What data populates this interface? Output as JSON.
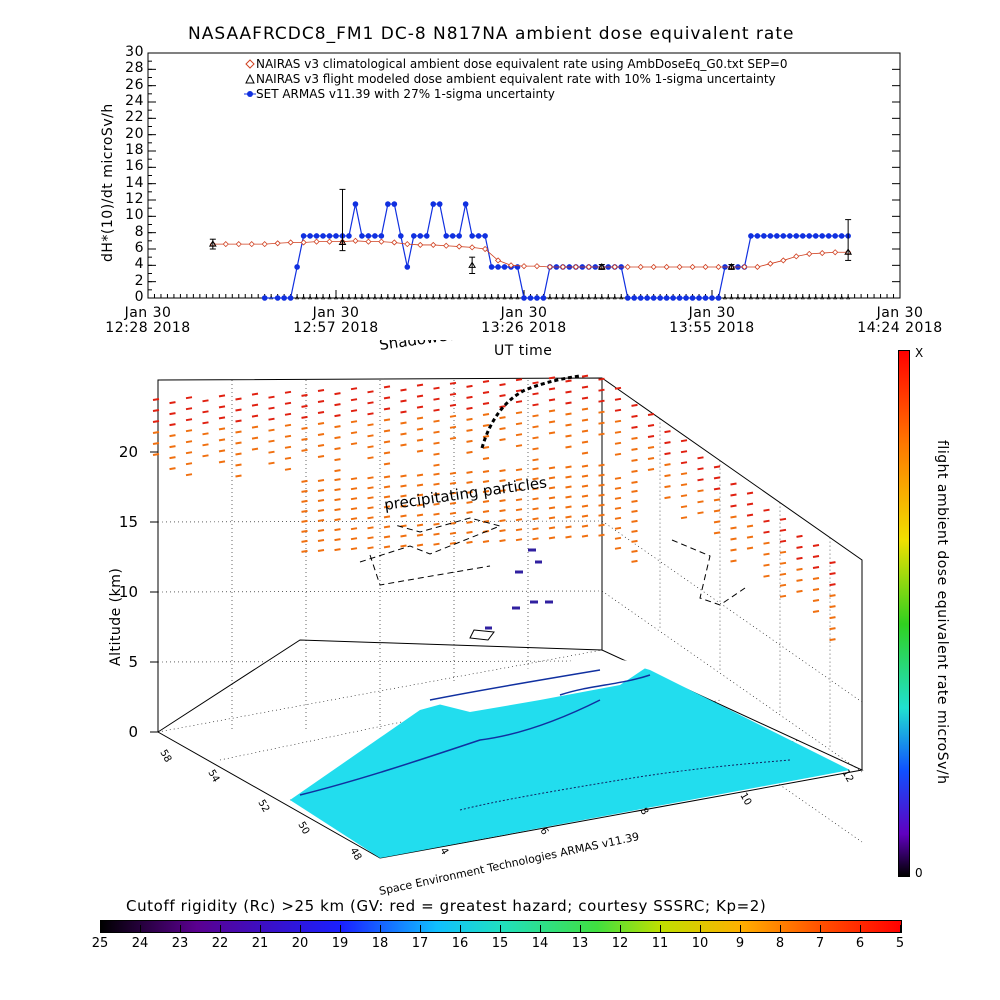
{
  "title": "NASAAFRCDC8_FM1 DC-8    N817NA ambient dose equivalent rate",
  "top_chart": {
    "ylabel": "dH*(10)/dt microSv/h",
    "xlabel": "UT time",
    "ytick_labels": [
      "0",
      "2",
      "4",
      "6",
      "8",
      "10",
      "12",
      "14",
      "16",
      "18",
      "20",
      "22",
      "24",
      "26",
      "28",
      "30"
    ],
    "xtick_labels": [
      {
        "line1": "Jan 30",
        "line2": "12:28 2018"
      },
      {
        "line1": "Jan 30",
        "line2": "12:57 2018"
      },
      {
        "line1": "Jan 30",
        "line2": "13:26 2018"
      },
      {
        "line1": "Jan 30",
        "line2": "13:55 2018"
      },
      {
        "line1": "Jan 30",
        "line2": "14:24 2018"
      }
    ],
    "legend": [
      {
        "symbol": "diamond",
        "color": "#d04020",
        "text": "NAIRAS v3 climatological ambient dose equivalent rate using AmbDoseEq_G0.txt SEP=0"
      },
      {
        "symbol": "triangle",
        "color": "#000000",
        "text": "NAIRAS v3 flight modeled dose ambient equivalent rate with 10% 1-sigma uncertainty"
      },
      {
        "symbol": "dot",
        "color": "#1030e0",
        "text": "SET ARMAS v11.39 with 27% 1-sigma uncertainty"
      }
    ]
  },
  "chart_data": [
    {
      "type": "line",
      "title": "NASAAFRCDC8_FM1 DC-8    N817NA ambient dose equivalent rate",
      "xlabel": "UT time",
      "ylabel": "dH*(10)/dt microSv/h",
      "ylim": [
        0,
        30
      ],
      "x_unit": "minutes after Jan 30 12:28 2018 UT",
      "xlim": [
        0,
        116
      ],
      "legend_placement": "top-center",
      "grid": false,
      "series": [
        {
          "name": "SET ARMAS v11.39 with 27% 1-sigma uncertainty",
          "color": "#1030e0",
          "x": [
            18,
            20,
            21,
            22,
            23,
            24,
            25,
            26,
            27,
            28,
            29,
            30,
            31,
            32,
            33,
            34,
            35,
            36,
            37,
            38,
            39,
            40,
            41,
            42,
            43,
            44,
            45,
            46,
            47,
            48,
            49,
            50,
            51,
            52,
            53,
            54,
            55,
            56,
            57,
            58,
            59,
            60,
            61,
            62,
            63,
            64,
            65,
            66,
            67,
            68,
            69,
            70,
            71,
            72,
            73,
            74,
            75,
            76,
            77,
            78,
            79,
            80,
            81,
            82,
            83,
            84,
            85,
            86,
            87,
            88,
            89,
            90,
            91,
            92,
            93,
            94,
            95,
            96,
            97,
            98,
            99,
            100,
            101,
            102,
            103,
            104,
            105,
            106,
            107,
            108
          ],
          "y": [
            0,
            0,
            0,
            0,
            3.8,
            7.6,
            7.6,
            7.6,
            7.6,
            7.6,
            7.6,
            7.6,
            7.6,
            11.5,
            7.6,
            7.6,
            7.6,
            7.6,
            11.5,
            11.5,
            7.6,
            3.8,
            7.6,
            7.6,
            7.6,
            11.5,
            11.5,
            7.6,
            7.6,
            7.6,
            11.5,
            7.6,
            7.6,
            7.6,
            3.8,
            3.8,
            3.8,
            3.8,
            3.8,
            0,
            0,
            0,
            0,
            3.8,
            3.8,
            3.8,
            3.8,
            3.8,
            3.8,
            3.8,
            3.8,
            3.8,
            3.8,
            3.8,
            3.8,
            0,
            0,
            0,
            0,
            0,
            0,
            0,
            0,
            0,
            0,
            0,
            0,
            0,
            0,
            0,
            3.8,
            3.8,
            3.8,
            3.8,
            7.6,
            7.6,
            7.6,
            7.6,
            7.6,
            7.6,
            7.6,
            7.6,
            7.6,
            7.6,
            7.6,
            7.6,
            7.6,
            7.6,
            7.6,
            7.6
          ]
        },
        {
          "name": "NAIRAS v3 climatological ambient dose equivalent rate using AmbDoseEq_G0.txt SEP=0",
          "color": "#d04020",
          "x": [
            10,
            12,
            14,
            16,
            18,
            20,
            22,
            24,
            26,
            28,
            30,
            32,
            34,
            36,
            38,
            40,
            42,
            44,
            46,
            48,
            50,
            52,
            54,
            56,
            58,
            60,
            62,
            64,
            66,
            68,
            70,
            72,
            74,
            76,
            78,
            80,
            82,
            84,
            86,
            88,
            90,
            92,
            94,
            96,
            98,
            100,
            102,
            104,
            106,
            108
          ],
          "y": [
            6.6,
            6.6,
            6.6,
            6.6,
            6.6,
            6.7,
            6.8,
            6.8,
            6.9,
            6.9,
            6.9,
            7.0,
            6.9,
            6.9,
            6.8,
            6.6,
            6.5,
            6.5,
            6.4,
            6.3,
            6.2,
            6.0,
            4.6,
            4.0,
            3.9,
            3.9,
            3.8,
            3.8,
            3.8,
            3.8,
            3.8,
            3.8,
            3.8,
            3.8,
            3.8,
            3.8,
            3.8,
            3.8,
            3.8,
            3.8,
            3.8,
            3.8,
            3.8,
            4.2,
            4.6,
            5.1,
            5.4,
            5.5,
            5.6,
            5.6
          ]
        },
        {
          "name": "NAIRAS v3 flight modeled dose ambient equivalent rate with 10% 1-sigma uncertainty",
          "color": "#000000",
          "x": [
            10,
            30,
            50,
            70,
            90,
            108
          ],
          "y": [
            6.6,
            6.8,
            4.0,
            3.8,
            3.8,
            5.6
          ],
          "err_low": [
            0.6,
            1.0,
            1.0,
            0.3,
            0.3,
            1.0
          ],
          "err_high": [
            0.6,
            6.5,
            1.0,
            0.3,
            0.3,
            4.0
          ]
        }
      ]
    },
    {
      "type": "3d-scatter",
      "title": "",
      "zlabel": "Altitude (km)",
      "ztick_labels": [
        "0",
        "5",
        "10",
        "15",
        "20"
      ],
      "zlim": [
        0,
        22
      ],
      "lat_tick_labels": [
        "58",
        "54",
        "52",
        "50",
        "48"
      ],
      "lon_tick_labels": [
        "4",
        "6",
        "8",
        "10",
        "12"
      ],
      "color_scale_label": "flight ambient dose equivalent rate microSv/h",
      "color_scale_min": "0",
      "color_scale_max": "X",
      "annotations": [
        "Shadowed flightpath",
        "precipitating particles",
        "Space Environment Technologies ARMAS v11.39"
      ]
    },
    {
      "type": "heatmap",
      "colorbar_title": "Cutoff rigidity (Rc) >25 km (GV: red = greatest hazard; courtesy SSSRC; Kp=2)",
      "colorbar_ticks": [
        "25",
        "24",
        "23",
        "22",
        "21",
        "20",
        "19",
        "18",
        "17",
        "16",
        "15",
        "14",
        "13",
        "12",
        "11",
        "10",
        "9",
        "8",
        "7",
        "6",
        "5"
      ]
    }
  ]
}
